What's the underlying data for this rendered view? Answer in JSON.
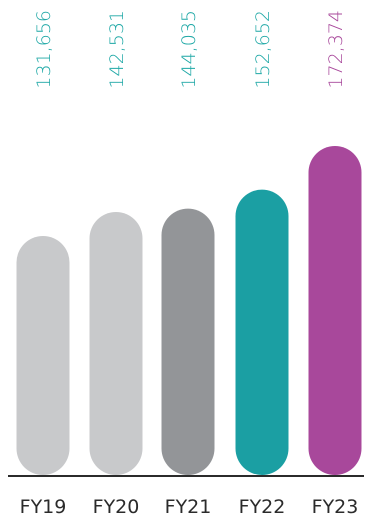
{
  "chart_data": {
    "type": "bar",
    "title": "",
    "xlabel": "",
    "ylabel": "",
    "categories": [
      "FY19",
      "FY20",
      "FY21",
      "FY22",
      "FY23"
    ],
    "values": [
      131656,
      142531,
      144035,
      152652,
      172374
    ],
    "value_labels": [
      "131,656",
      "142,531",
      "144,035",
      "152,652",
      "172,374"
    ],
    "bar_colors": [
      "#c8c9cb",
      "#c8c9cb",
      "#939598",
      "#1b9fa3",
      "#a8489b"
    ],
    "label_colors": [
      "#1fa8a6",
      "#1fa8a6",
      "#1fa8a6",
      "#1fa8a6",
      "#a8489b"
    ],
    "axis_color": "#2b2b2b",
    "ylim": [
      0,
      172374
    ],
    "grid": false,
    "legend": "none"
  }
}
